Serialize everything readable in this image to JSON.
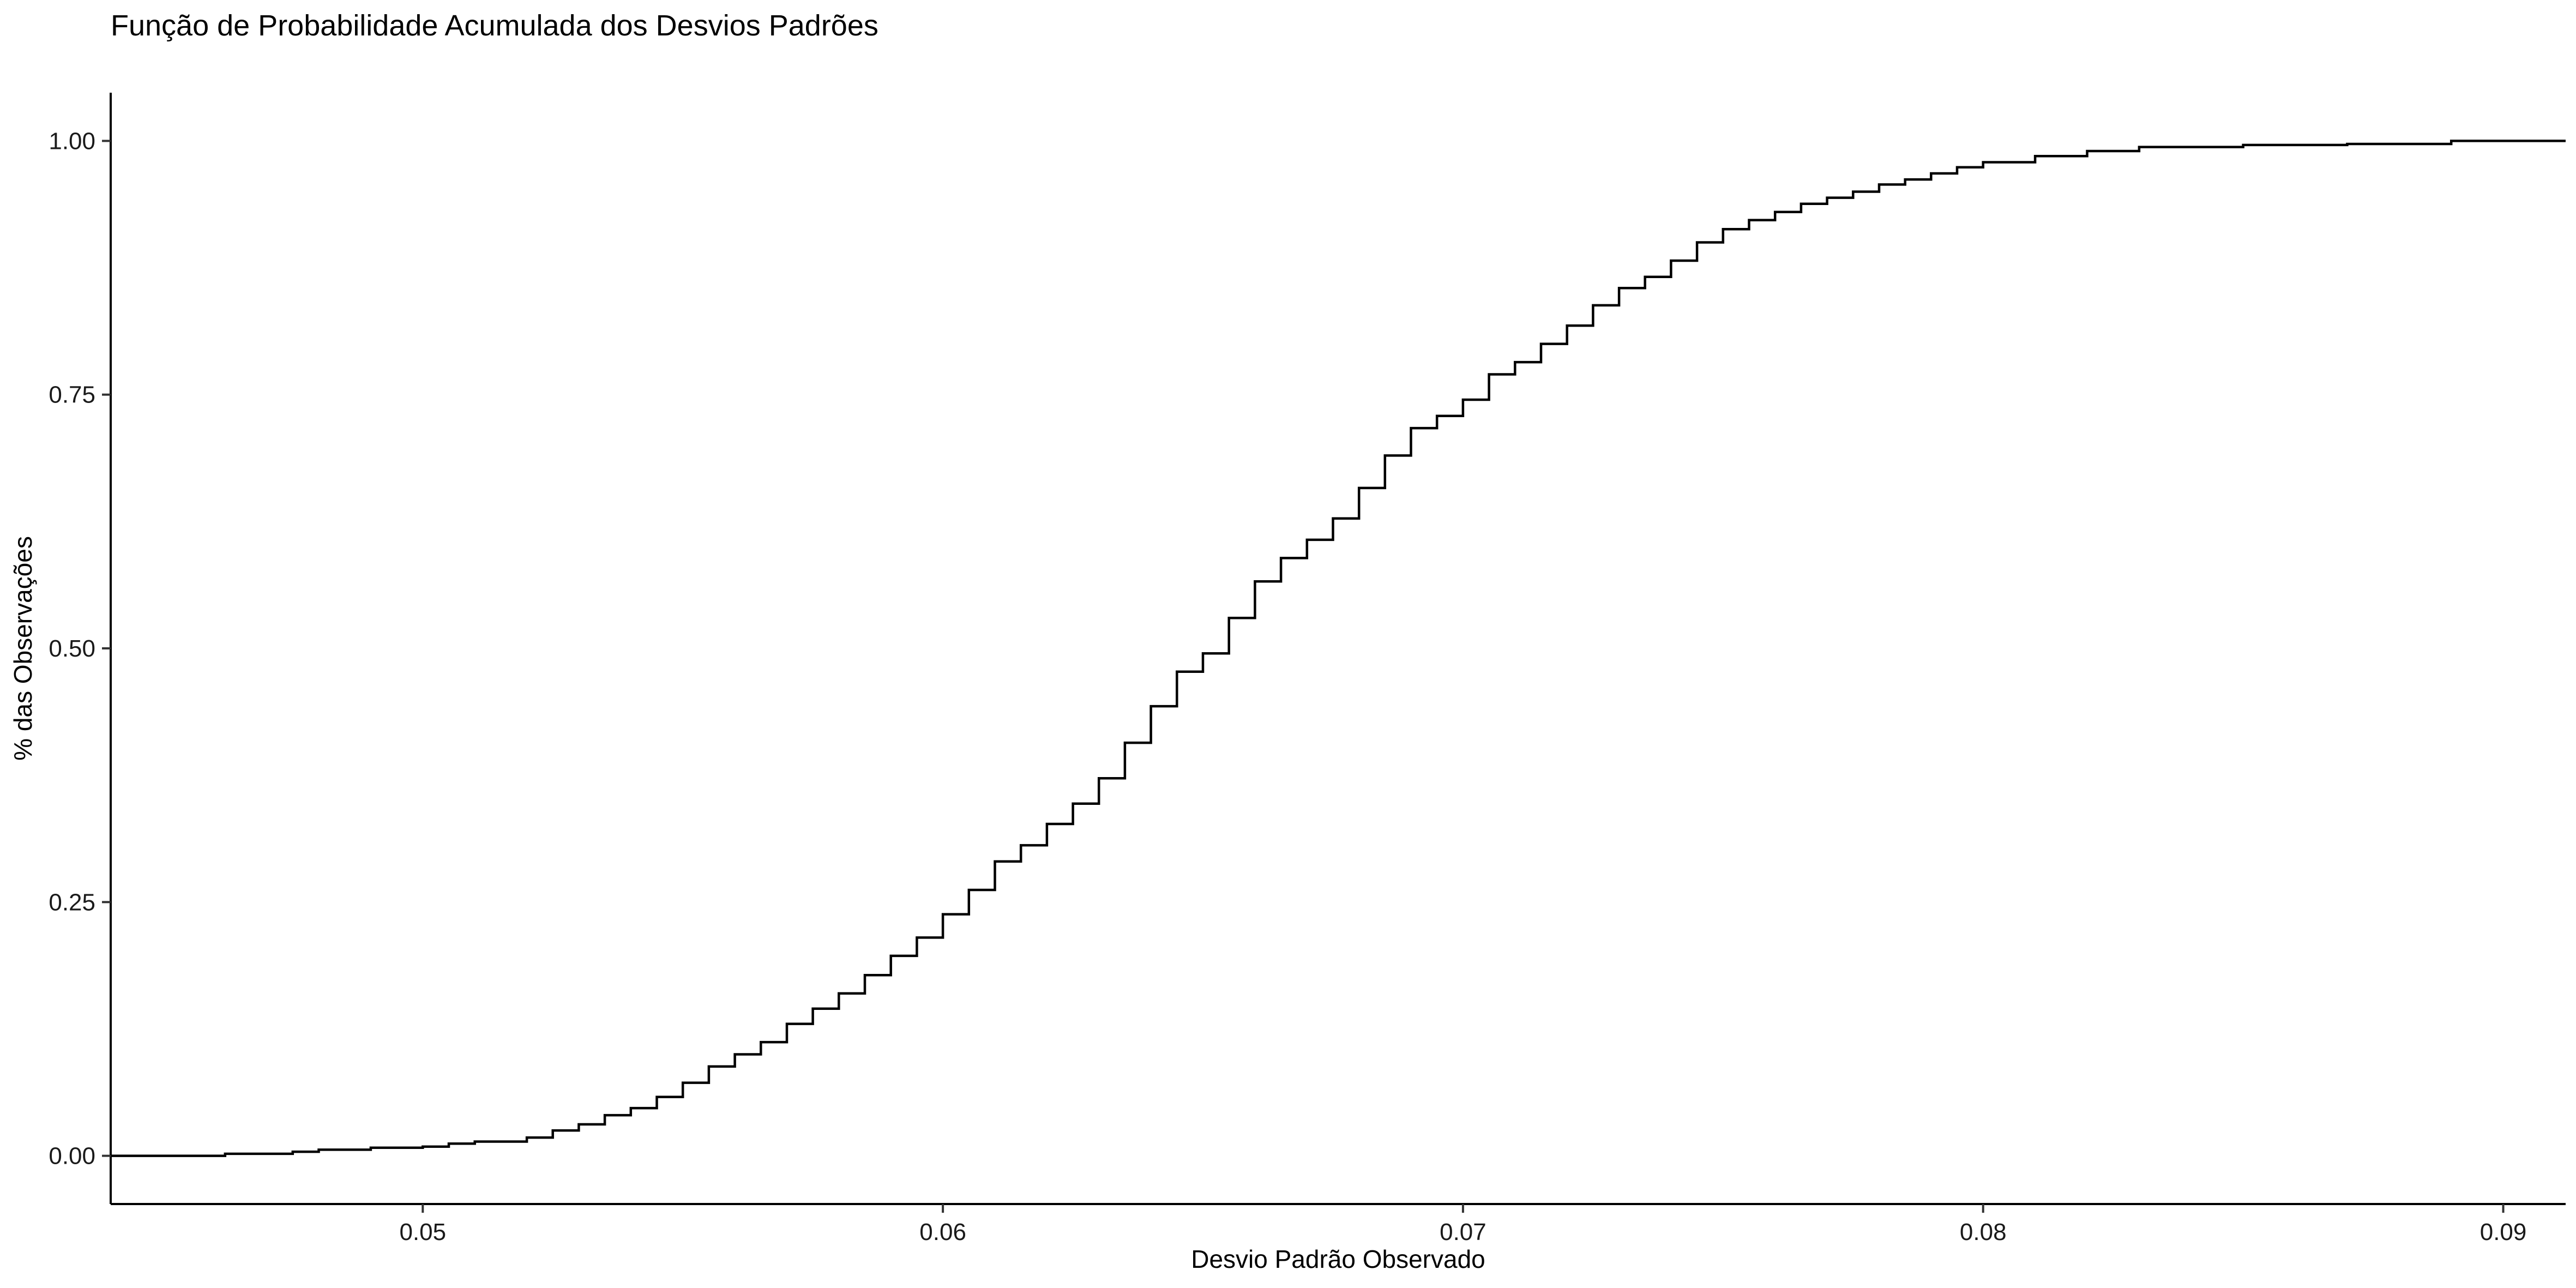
{
  "chart_data": {
    "type": "line",
    "step": true,
    "title": "Função de Probabilidade Acumulada dos Desvios Padrões",
    "xlabel": "Desvio Padrão Observado",
    "ylabel": "% das Observações",
    "xlim": [
      0.044,
      0.0912
    ],
    "ylim": [
      -0.0475,
      1.0475
    ],
    "x_ticks": [
      0.05,
      0.06,
      0.07,
      0.08,
      0.09
    ],
    "x_tick_labels": [
      "0.05",
      "0.06",
      "0.07",
      "0.08",
      "0.09"
    ],
    "y_ticks": [
      0.0,
      0.25,
      0.5,
      0.75,
      1.0
    ],
    "y_tick_labels": [
      "0.00",
      "0.25",
      "0.50",
      "0.75",
      "1.00"
    ],
    "grid": false,
    "series": [
      {
        "x": [
          0.044,
          0.0462,
          0.0475,
          0.048,
          0.049,
          0.05,
          0.0505,
          0.051,
          0.052,
          0.0525,
          0.053,
          0.0535,
          0.054,
          0.0545,
          0.055,
          0.0555,
          0.056,
          0.0565,
          0.057,
          0.0575,
          0.058,
          0.0585,
          0.059,
          0.0595,
          0.06,
          0.0605,
          0.061,
          0.0615,
          0.062,
          0.0625,
          0.063,
          0.0635,
          0.064,
          0.0645,
          0.065,
          0.0655,
          0.066,
          0.0665,
          0.067,
          0.0675,
          0.068,
          0.0685,
          0.069,
          0.0695,
          0.07,
          0.0705,
          0.071,
          0.0715,
          0.072,
          0.0725,
          0.073,
          0.0735,
          0.074,
          0.0745,
          0.075,
          0.0755,
          0.076,
          0.0765,
          0.077,
          0.0775,
          0.078,
          0.0785,
          0.079,
          0.0795,
          0.08,
          0.081,
          0.082,
          0.083,
          0.085,
          0.087,
          0.089,
          0.0912
        ],
        "y": [
          0.0,
          0.002,
          0.004,
          0.006,
          0.008,
          0.009,
          0.012,
          0.014,
          0.018,
          0.025,
          0.031,
          0.04,
          0.047,
          0.058,
          0.072,
          0.088,
          0.1,
          0.112,
          0.13,
          0.145,
          0.16,
          0.178,
          0.197,
          0.215,
          0.238,
          0.262,
          0.29,
          0.306,
          0.327,
          0.347,
          0.372,
          0.407,
          0.443,
          0.477,
          0.495,
          0.53,
          0.566,
          0.589,
          0.607,
          0.628,
          0.658,
          0.69,
          0.717,
          0.729,
          0.745,
          0.77,
          0.782,
          0.8,
          0.818,
          0.838,
          0.855,
          0.866,
          0.882,
          0.9,
          0.913,
          0.922,
          0.93,
          0.938,
          0.944,
          0.95,
          0.957,
          0.962,
          0.968,
          0.974,
          0.979,
          0.985,
          0.99,
          0.994,
          0.996,
          0.997,
          1.0,
          1.0
        ]
      }
    ]
  }
}
